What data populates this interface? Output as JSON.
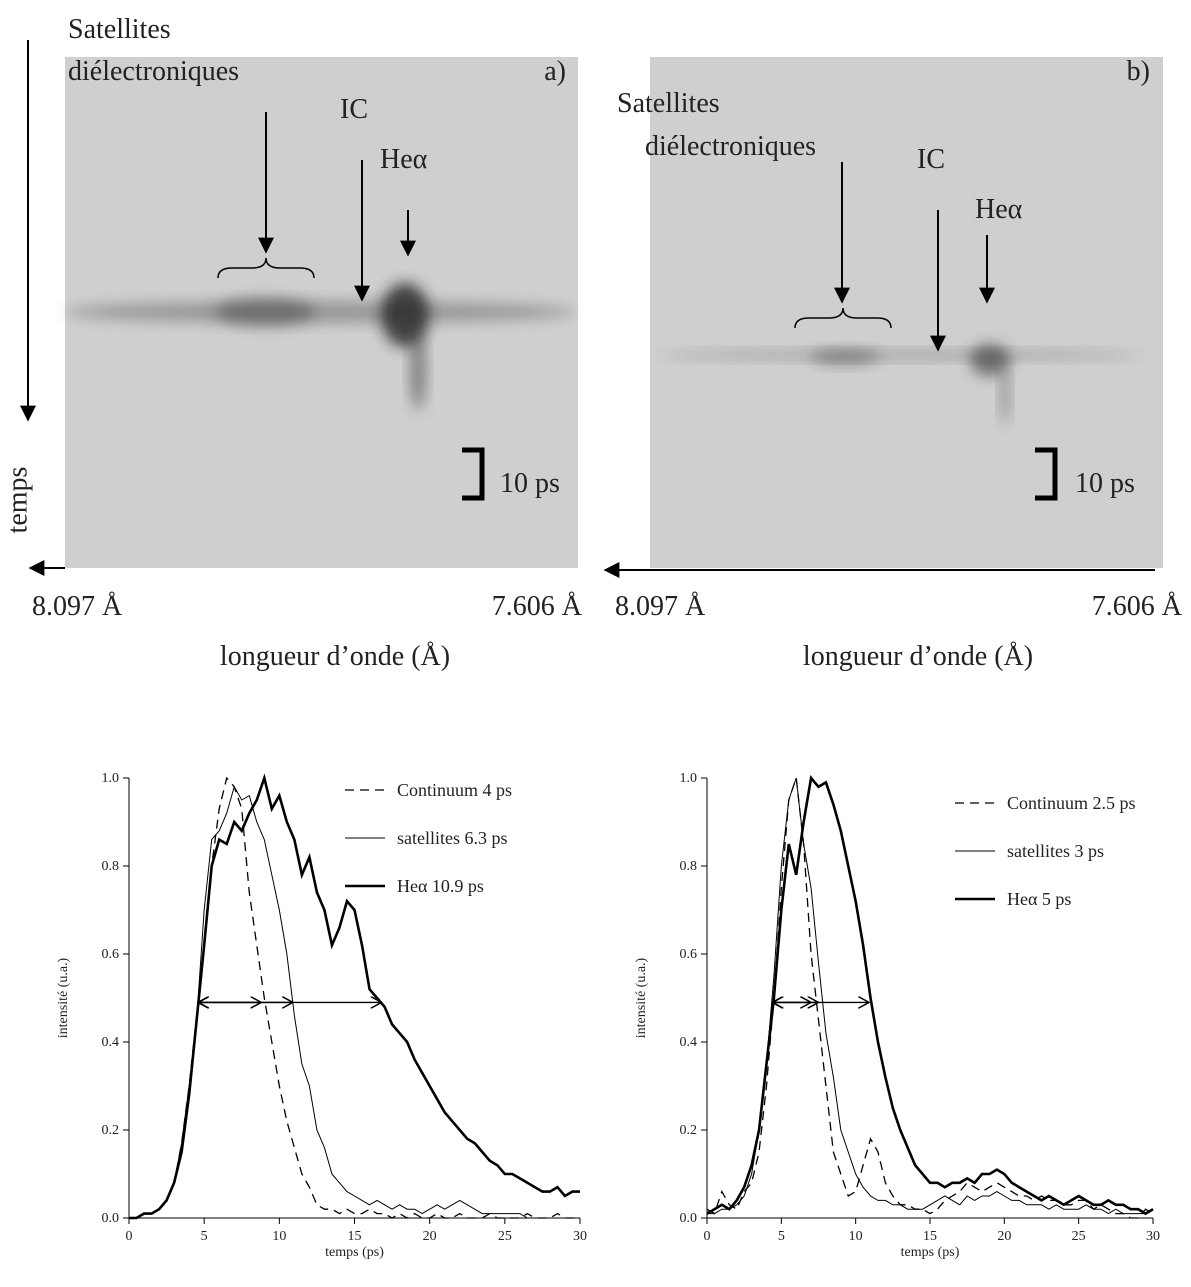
{
  "streak_images": {
    "time_label": "temps",
    "panels": [
      {
        "tag": "a)",
        "satellites_label": [
          "Satellites",
          "diélectroniques"
        ],
        "ic_label": "IC",
        "hea_label": "Heα",
        "scale_label": "10 ps",
        "x_left": "8.097 Å",
        "x_right": "7.606 Å",
        "xlabel": "longueur d’onde (Å)"
      },
      {
        "tag": "b)",
        "satellites_label": [
          "Satellites",
          "diélectroniques"
        ],
        "ic_label": "IC",
        "hea_label": "Heα",
        "scale_label": "10 ps",
        "x_left": "8.097 Å",
        "x_right": "7.606 Å",
        "xlabel": "longueur d’onde (Å)"
      }
    ]
  },
  "chart_data": [
    {
      "type": "line",
      "xlabel": "temps (ps)",
      "ylabel": "intensité (u.a.)",
      "xlim": [
        0,
        30
      ],
      "ylim": [
        0,
        1
      ],
      "xticks": [
        0,
        5,
        10,
        15,
        20,
        25,
        30
      ],
      "yticks": [
        {
          "value": 0,
          "label": "0.0"
        },
        {
          "value": 0.2,
          "label": "0.2"
        },
        {
          "value": 0.4,
          "label": "0.4"
        },
        {
          "value": 0.6,
          "label": "0.6"
        },
        {
          "value": 0.8,
          "label": "0.8"
        },
        {
          "value": 1,
          "label": "1.0"
        }
      ],
      "x": [
        0,
        0.5,
        1,
        1.5,
        2,
        2.5,
        3,
        3.5,
        4,
        4.5,
        5,
        5.5,
        6,
        6.5,
        7,
        7.5,
        8,
        8.5,
        9,
        9.5,
        10,
        10.5,
        11,
        11.5,
        12,
        12.5,
        13,
        13.5,
        14,
        14.5,
        15,
        15.5,
        16,
        16.5,
        17,
        17.5,
        18,
        18.5,
        19,
        19.5,
        20,
        20.5,
        21,
        21.5,
        22,
        22.5,
        23,
        23.5,
        24,
        24.5,
        25,
        25.5,
        26,
        26.5,
        27,
        27.5,
        28,
        28.5,
        29,
        29.5,
        30
      ],
      "series": [
        {
          "name": "Continuum 4 ps",
          "color": "#000000",
          "style": "dashed",
          "values": [
            0,
            0,
            0.01,
            0.01,
            0.02,
            0.04,
            0.08,
            0.17,
            0.3,
            0.46,
            0.62,
            0.8,
            0.93,
            1.0,
            0.98,
            0.93,
            0.74,
            0.62,
            0.5,
            0.4,
            0.3,
            0.22,
            0.16,
            0.1,
            0.07,
            0.03,
            0.02,
            0.02,
            0.01,
            0.02,
            0.01,
            0.01,
            0.02,
            0.01,
            0.01,
            0,
            0.01,
            0,
            0.01,
            0,
            0,
            0.01,
            0,
            0,
            0.01,
            0,
            0,
            0,
            0.01,
            0,
            0,
            0,
            0,
            0.01,
            0,
            0,
            0,
            0.01,
            0,
            0,
            0
          ]
        },
        {
          "name": "satellites  6.3 ps",
          "color": "#000000",
          "style": "thin",
          "values": [
            0,
            0,
            0.01,
            0.01,
            0.02,
            0.04,
            0.08,
            0.17,
            0.3,
            0.45,
            0.7,
            0.86,
            0.88,
            0.92,
            0.98,
            0.95,
            0.96,
            0.9,
            0.86,
            0.78,
            0.7,
            0.6,
            0.46,
            0.35,
            0.3,
            0.2,
            0.16,
            0.1,
            0.08,
            0.06,
            0.05,
            0.04,
            0.03,
            0.04,
            0.03,
            0.02,
            0.03,
            0.02,
            0.02,
            0.01,
            0.02,
            0.03,
            0.02,
            0.03,
            0.04,
            0.03,
            0.02,
            0.01,
            0.01,
            0.01,
            0.01,
            0.01,
            0.01,
            0,
            0,
            0,
            0,
            0,
            0,
            0,
            0
          ]
        },
        {
          "name": "Heα  10.9 ps",
          "color": "#000000",
          "style": "thick",
          "values": [
            0,
            0,
            0.01,
            0.01,
            0.02,
            0.04,
            0.08,
            0.15,
            0.28,
            0.45,
            0.62,
            0.8,
            0.86,
            0.85,
            0.9,
            0.88,
            0.92,
            0.95,
            1.0,
            0.93,
            0.96,
            0.9,
            0.86,
            0.78,
            0.82,
            0.74,
            0.7,
            0.62,
            0.66,
            0.72,
            0.7,
            0.62,
            0.52,
            0.5,
            0.48,
            0.44,
            0.42,
            0.4,
            0.36,
            0.33,
            0.3,
            0.27,
            0.24,
            0.22,
            0.2,
            0.18,
            0.17,
            0.15,
            0.13,
            0.12,
            0.1,
            0.1,
            0.09,
            0.08,
            0.07,
            0.06,
            0.06,
            0.07,
            0.05,
            0.06,
            0.06
          ]
        }
      ],
      "fwhm_arrows": [
        {
          "y": 0.49,
          "x": [
            4.6,
            8.8
          ]
        },
        {
          "y": 0.49,
          "x": [
            4.6,
            10.9
          ]
        },
        {
          "y": 0.49,
          "x": [
            4.6,
            16.8
          ]
        }
      ]
    },
    {
      "type": "line",
      "xlabel": "temps (ps)",
      "ylabel": "intensité (u.a.)",
      "xlim": [
        0,
        30
      ],
      "ylim": [
        0,
        1
      ],
      "xticks": [
        0,
        5,
        10,
        15,
        20,
        25,
        30
      ],
      "yticks": [
        {
          "value": 0,
          "label": "0.0"
        },
        {
          "value": 0.2,
          "label": "0.2"
        },
        {
          "value": 0.4,
          "label": "0.4"
        },
        {
          "value": 0.6,
          "label": "0.6"
        },
        {
          "value": 0.8,
          "label": "0.8"
        },
        {
          "value": 1,
          "label": "1.0"
        }
      ],
      "x": [
        0,
        0.5,
        1,
        1.5,
        2,
        2.5,
        3,
        3.5,
        4,
        4.5,
        5,
        5.5,
        6,
        6.5,
        7,
        7.5,
        8,
        8.5,
        9,
        9.5,
        10,
        10.5,
        11,
        11.5,
        12,
        12.5,
        13,
        13.5,
        14,
        14.5,
        15,
        15.5,
        16,
        16.5,
        17,
        17.5,
        18,
        18.5,
        19,
        19.5,
        20,
        20.5,
        21,
        21.5,
        22,
        22.5,
        23,
        23.5,
        24,
        24.5,
        25,
        25.5,
        26,
        26.5,
        27,
        27.5,
        28,
        28.5,
        29,
        29.5,
        30
      ],
      "series": [
        {
          "name": "Continuum 2.5 ps",
          "color": "#000000",
          "style": "dashed",
          "values": [
            0.02,
            0.01,
            0.06,
            0.03,
            0.02,
            0.06,
            0.08,
            0.15,
            0.3,
            0.5,
            0.75,
            0.95,
            1.0,
            0.85,
            0.6,
            0.45,
            0.3,
            0.15,
            0.1,
            0.05,
            0.06,
            0.12,
            0.18,
            0.15,
            0.08,
            0.05,
            0.03,
            0.03,
            0.02,
            0.02,
            0.01,
            0.02,
            0.04,
            0.05,
            0.06,
            0.08,
            0.07,
            0.06,
            0.07,
            0.08,
            0.07,
            0.06,
            0.05,
            0.05,
            0.04,
            0.05,
            0.04,
            0.04,
            0.03,
            0.03,
            0.04,
            0.04,
            0.02,
            0.03,
            0.02,
            0.01,
            0.01,
            0,
            0,
            0.02,
            0.01
          ]
        },
        {
          "name": "satellites 3 ps",
          "color": "#000000",
          "style": "thin",
          "values": [
            0.01,
            0.01,
            0.02,
            0.02,
            0.03,
            0.05,
            0.1,
            0.2,
            0.35,
            0.55,
            0.8,
            0.95,
            1.0,
            0.85,
            0.75,
            0.58,
            0.42,
            0.32,
            0.2,
            0.15,
            0.1,
            0.07,
            0.05,
            0.04,
            0.04,
            0.03,
            0.03,
            0.02,
            0.02,
            0.02,
            0.03,
            0.04,
            0.05,
            0.04,
            0.03,
            0.05,
            0.04,
            0.05,
            0.05,
            0.06,
            0.05,
            0.04,
            0.04,
            0.03,
            0.03,
            0.03,
            0.02,
            0.03,
            0.02,
            0.02,
            0.02,
            0.03,
            0.02,
            0.02,
            0.01,
            0.02,
            0.01,
            0.01,
            0.01,
            0.01,
            0.02
          ]
        },
        {
          "name": "Heα 5 ps",
          "color": "#000000",
          "style": "thick",
          "values": [
            0.01,
            0.02,
            0.03,
            0.02,
            0.04,
            0.07,
            0.12,
            0.2,
            0.35,
            0.5,
            0.7,
            0.85,
            0.78,
            0.9,
            1.0,
            0.98,
            0.99,
            0.94,
            0.88,
            0.8,
            0.72,
            0.62,
            0.5,
            0.4,
            0.32,
            0.25,
            0.2,
            0.16,
            0.12,
            0.1,
            0.08,
            0.08,
            0.07,
            0.08,
            0.08,
            0.09,
            0.08,
            0.1,
            0.1,
            0.11,
            0.1,
            0.08,
            0.07,
            0.06,
            0.05,
            0.04,
            0.05,
            0.04,
            0.03,
            0.04,
            0.05,
            0.04,
            0.03,
            0.03,
            0.04,
            0.03,
            0.03,
            0.02,
            0.02,
            0.01,
            0.02
          ]
        }
      ],
      "fwhm_arrows": [
        {
          "y": 0.49,
          "x": [
            4.4,
            7
          ]
        },
        {
          "y": 0.49,
          "x": [
            4.4,
            7.5
          ]
        },
        {
          "y": 0.49,
          "x": [
            4.4,
            10.9
          ]
        }
      ]
    }
  ]
}
